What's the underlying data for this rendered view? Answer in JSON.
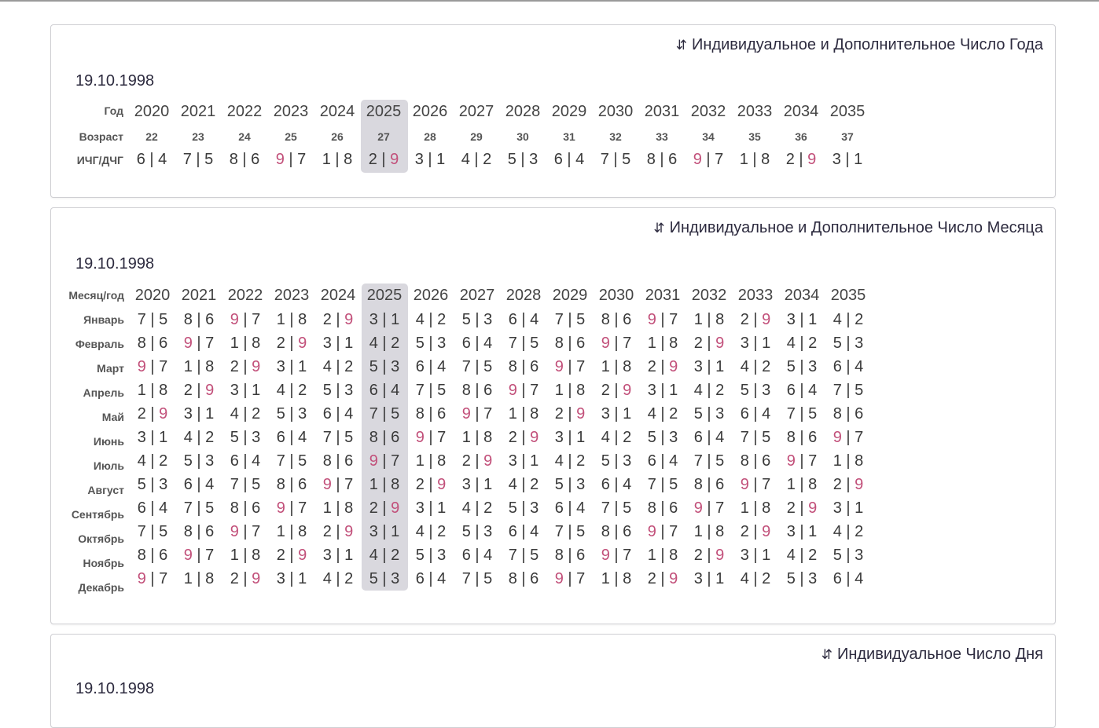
{
  "years": [
    "2020",
    "2021",
    "2022",
    "2023",
    "2024",
    "2025",
    "2026",
    "2027",
    "2028",
    "2029",
    "2030",
    "2031",
    "2032",
    "2033",
    "2034",
    "2035"
  ],
  "highlight_year": "2025",
  "accent_color": "#c2507a",
  "highlight_color": "#d9d8de",
  "year_card": {
    "title": "Индивидуальное и Дополнительное Число Года",
    "icon": "sort-icon",
    "date": "19.10.1998",
    "row_labels": [
      "Год",
      "Возраст",
      "ИЧГ/ДЧГ"
    ],
    "ages": [
      "22",
      "23",
      "24",
      "25",
      "26",
      "27",
      "28",
      "29",
      "30",
      "31",
      "32",
      "33",
      "34",
      "35",
      "36",
      "37"
    ],
    "values": [
      [
        "6",
        "4"
      ],
      [
        "7",
        "5"
      ],
      [
        "8",
        "6"
      ],
      [
        "9",
        "7"
      ],
      [
        "1",
        "8"
      ],
      [
        "2",
        "9"
      ],
      [
        "3",
        "1"
      ],
      [
        "4",
        "2"
      ],
      [
        "5",
        "3"
      ],
      [
        "6",
        "4"
      ],
      [
        "7",
        "5"
      ],
      [
        "8",
        "6"
      ],
      [
        "9",
        "7"
      ],
      [
        "1",
        "8"
      ],
      [
        "2",
        "9"
      ],
      [
        "3",
        "1"
      ]
    ]
  },
  "month_card": {
    "title": "Индивидуальное и Дополнительное Число Месяца",
    "icon": "sort-icon",
    "date": "19.10.1998",
    "header_label": "Месяц/год",
    "months": [
      "Январь",
      "Февраль",
      "Март",
      "Апрель",
      "Май",
      "Июнь",
      "Июль",
      "Август",
      "Сентябрь",
      "Октябрь",
      "Ноябрь",
      "Декабрь"
    ],
    "rows": [
      [
        [
          "7",
          "5"
        ],
        [
          "8",
          "6"
        ],
        [
          "9",
          "7"
        ],
        [
          "1",
          "8"
        ],
        [
          "2",
          "9"
        ],
        [
          "3",
          "1"
        ],
        [
          "4",
          "2"
        ],
        [
          "5",
          "3"
        ],
        [
          "6",
          "4"
        ],
        [
          "7",
          "5"
        ],
        [
          "8",
          "6"
        ],
        [
          "9",
          "7"
        ],
        [
          "1",
          "8"
        ],
        [
          "2",
          "9"
        ],
        [
          "3",
          "1"
        ],
        [
          "4",
          "2"
        ]
      ],
      [
        [
          "8",
          "6"
        ],
        [
          "9",
          "7"
        ],
        [
          "1",
          "8"
        ],
        [
          "2",
          "9"
        ],
        [
          "3",
          "1"
        ],
        [
          "4",
          "2"
        ],
        [
          "5",
          "3"
        ],
        [
          "6",
          "4"
        ],
        [
          "7",
          "5"
        ],
        [
          "8",
          "6"
        ],
        [
          "9",
          "7"
        ],
        [
          "1",
          "8"
        ],
        [
          "2",
          "9"
        ],
        [
          "3",
          "1"
        ],
        [
          "4",
          "2"
        ],
        [
          "5",
          "3"
        ]
      ],
      [
        [
          "9",
          "7"
        ],
        [
          "1",
          "8"
        ],
        [
          "2",
          "9"
        ],
        [
          "3",
          "1"
        ],
        [
          "4",
          "2"
        ],
        [
          "5",
          "3"
        ],
        [
          "6",
          "4"
        ],
        [
          "7",
          "5"
        ],
        [
          "8",
          "6"
        ],
        [
          "9",
          "7"
        ],
        [
          "1",
          "8"
        ],
        [
          "2",
          "9"
        ],
        [
          "3",
          "1"
        ],
        [
          "4",
          "2"
        ],
        [
          "5",
          "3"
        ],
        [
          "6",
          "4"
        ]
      ],
      [
        [
          "1",
          "8"
        ],
        [
          "2",
          "9"
        ],
        [
          "3",
          "1"
        ],
        [
          "4",
          "2"
        ],
        [
          "5",
          "3"
        ],
        [
          "6",
          "4"
        ],
        [
          "7",
          "5"
        ],
        [
          "8",
          "6"
        ],
        [
          "9",
          "7"
        ],
        [
          "1",
          "8"
        ],
        [
          "2",
          "9"
        ],
        [
          "3",
          "1"
        ],
        [
          "4",
          "2"
        ],
        [
          "5",
          "3"
        ],
        [
          "6",
          "4"
        ],
        [
          "7",
          "5"
        ]
      ],
      [
        [
          "2",
          "9"
        ],
        [
          "3",
          "1"
        ],
        [
          "4",
          "2"
        ],
        [
          "5",
          "3"
        ],
        [
          "6",
          "4"
        ],
        [
          "7",
          "5"
        ],
        [
          "8",
          "6"
        ],
        [
          "9",
          "7"
        ],
        [
          "1",
          "8"
        ],
        [
          "2",
          "9"
        ],
        [
          "3",
          "1"
        ],
        [
          "4",
          "2"
        ],
        [
          "5",
          "3"
        ],
        [
          "6",
          "4"
        ],
        [
          "7",
          "5"
        ],
        [
          "8",
          "6"
        ]
      ],
      [
        [
          "3",
          "1"
        ],
        [
          "4",
          "2"
        ],
        [
          "5",
          "3"
        ],
        [
          "6",
          "4"
        ],
        [
          "7",
          "5"
        ],
        [
          "8",
          "6"
        ],
        [
          "9",
          "7"
        ],
        [
          "1",
          "8"
        ],
        [
          "2",
          "9"
        ],
        [
          "3",
          "1"
        ],
        [
          "4",
          "2"
        ],
        [
          "5",
          "3"
        ],
        [
          "6",
          "4"
        ],
        [
          "7",
          "5"
        ],
        [
          "8",
          "6"
        ],
        [
          "9",
          "7"
        ]
      ],
      [
        [
          "4",
          "2"
        ],
        [
          "5",
          "3"
        ],
        [
          "6",
          "4"
        ],
        [
          "7",
          "5"
        ],
        [
          "8",
          "6"
        ],
        [
          "9",
          "7"
        ],
        [
          "1",
          "8"
        ],
        [
          "2",
          "9"
        ],
        [
          "3",
          "1"
        ],
        [
          "4",
          "2"
        ],
        [
          "5",
          "3"
        ],
        [
          "6",
          "4"
        ],
        [
          "7",
          "5"
        ],
        [
          "8",
          "6"
        ],
        [
          "9",
          "7"
        ],
        [
          "1",
          "8"
        ]
      ],
      [
        [
          "5",
          "3"
        ],
        [
          "6",
          "4"
        ],
        [
          "7",
          "5"
        ],
        [
          "8",
          "6"
        ],
        [
          "9",
          "7"
        ],
        [
          "1",
          "8"
        ],
        [
          "2",
          "9"
        ],
        [
          "3",
          "1"
        ],
        [
          "4",
          "2"
        ],
        [
          "5",
          "3"
        ],
        [
          "6",
          "4"
        ],
        [
          "7",
          "5"
        ],
        [
          "8",
          "6"
        ],
        [
          "9",
          "7"
        ],
        [
          "1",
          "8"
        ],
        [
          "2",
          "9"
        ]
      ],
      [
        [
          "6",
          "4"
        ],
        [
          "7",
          "5"
        ],
        [
          "8",
          "6"
        ],
        [
          "9",
          "7"
        ],
        [
          "1",
          "8"
        ],
        [
          "2",
          "9"
        ],
        [
          "3",
          "1"
        ],
        [
          "4",
          "2"
        ],
        [
          "5",
          "3"
        ],
        [
          "6",
          "4"
        ],
        [
          "7",
          "5"
        ],
        [
          "8",
          "6"
        ],
        [
          "9",
          "7"
        ],
        [
          "1",
          "8"
        ],
        [
          "2",
          "9"
        ],
        [
          "3",
          "1"
        ]
      ],
      [
        [
          "7",
          "5"
        ],
        [
          "8",
          "6"
        ],
        [
          "9",
          "7"
        ],
        [
          "1",
          "8"
        ],
        [
          "2",
          "9"
        ],
        [
          "3",
          "1"
        ],
        [
          "4",
          "2"
        ],
        [
          "5",
          "3"
        ],
        [
          "6",
          "4"
        ],
        [
          "7",
          "5"
        ],
        [
          "8",
          "6"
        ],
        [
          "9",
          "7"
        ],
        [
          "1",
          "8"
        ],
        [
          "2",
          "9"
        ],
        [
          "3",
          "1"
        ],
        [
          "4",
          "2"
        ]
      ],
      [
        [
          "8",
          "6"
        ],
        [
          "9",
          "7"
        ],
        [
          "1",
          "8"
        ],
        [
          "2",
          "9"
        ],
        [
          "3",
          "1"
        ],
        [
          "4",
          "2"
        ],
        [
          "5",
          "3"
        ],
        [
          "6",
          "4"
        ],
        [
          "7",
          "5"
        ],
        [
          "8",
          "6"
        ],
        [
          "9",
          "7"
        ],
        [
          "1",
          "8"
        ],
        [
          "2",
          "9"
        ],
        [
          "3",
          "1"
        ],
        [
          "4",
          "2"
        ],
        [
          "5",
          "3"
        ]
      ],
      [
        [
          "9",
          "7"
        ],
        [
          "1",
          "8"
        ],
        [
          "2",
          "9"
        ],
        [
          "3",
          "1"
        ],
        [
          "4",
          "2"
        ],
        [
          "5",
          "3"
        ],
        [
          "6",
          "4"
        ],
        [
          "7",
          "5"
        ],
        [
          "8",
          "6"
        ],
        [
          "9",
          "7"
        ],
        [
          "1",
          "8"
        ],
        [
          "2",
          "9"
        ],
        [
          "3",
          "1"
        ],
        [
          "4",
          "2"
        ],
        [
          "5",
          "3"
        ],
        [
          "6",
          "4"
        ]
      ]
    ]
  },
  "day_card": {
    "title": "Индивидуальное Число Дня",
    "icon": "sort-icon",
    "date": "19.10.1998"
  }
}
